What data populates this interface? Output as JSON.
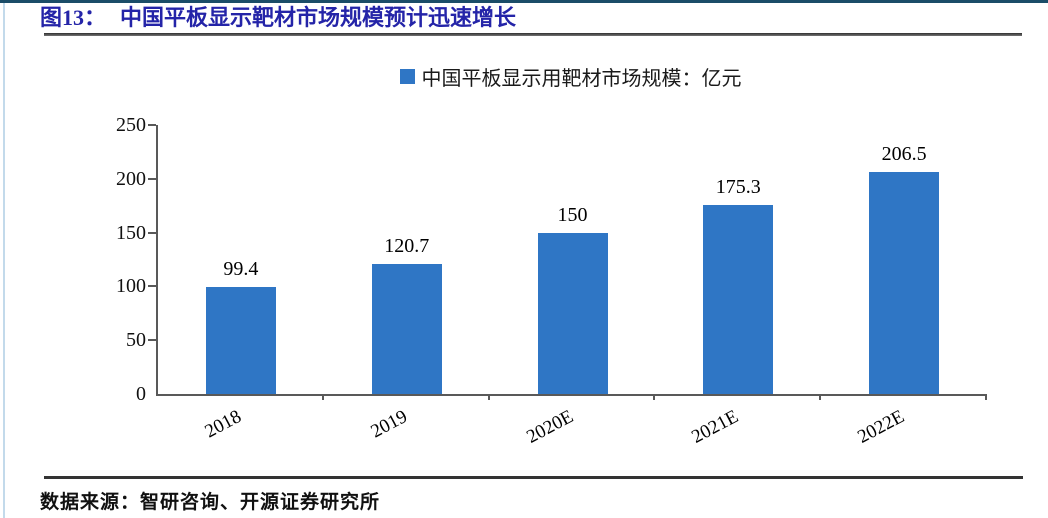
{
  "page": {
    "figure_label": "图13：",
    "figure_title": "中国平板显示靶材市场规模预计迅速增长",
    "source_text": "数据来源：智研咨询、开源证券研究所"
  },
  "colors": {
    "bar": "#2F76C5",
    "title_text": "#2424A8",
    "top_strip": "#1B4D68",
    "axis": "#595959"
  },
  "chart_data": {
    "type": "bar",
    "title": "",
    "legend": [
      "中国平板显示用靶材市场规模：亿元"
    ],
    "legend_position": "top-center",
    "categories": [
      "2018",
      "2019",
      "2020E",
      "2021E",
      "2022E"
    ],
    "values": [
      99.4,
      120.7,
      150,
      175.3,
      206.5
    ],
    "value_labels": [
      "99.4",
      "120.7",
      "150",
      "175.3",
      "206.5"
    ],
    "xlabel": "",
    "ylabel": "",
    "ylim": [
      0,
      250
    ],
    "yticks": [
      0,
      50,
      100,
      150,
      200,
      250
    ],
    "grid": false,
    "x_label_rotation_deg": -28
  }
}
